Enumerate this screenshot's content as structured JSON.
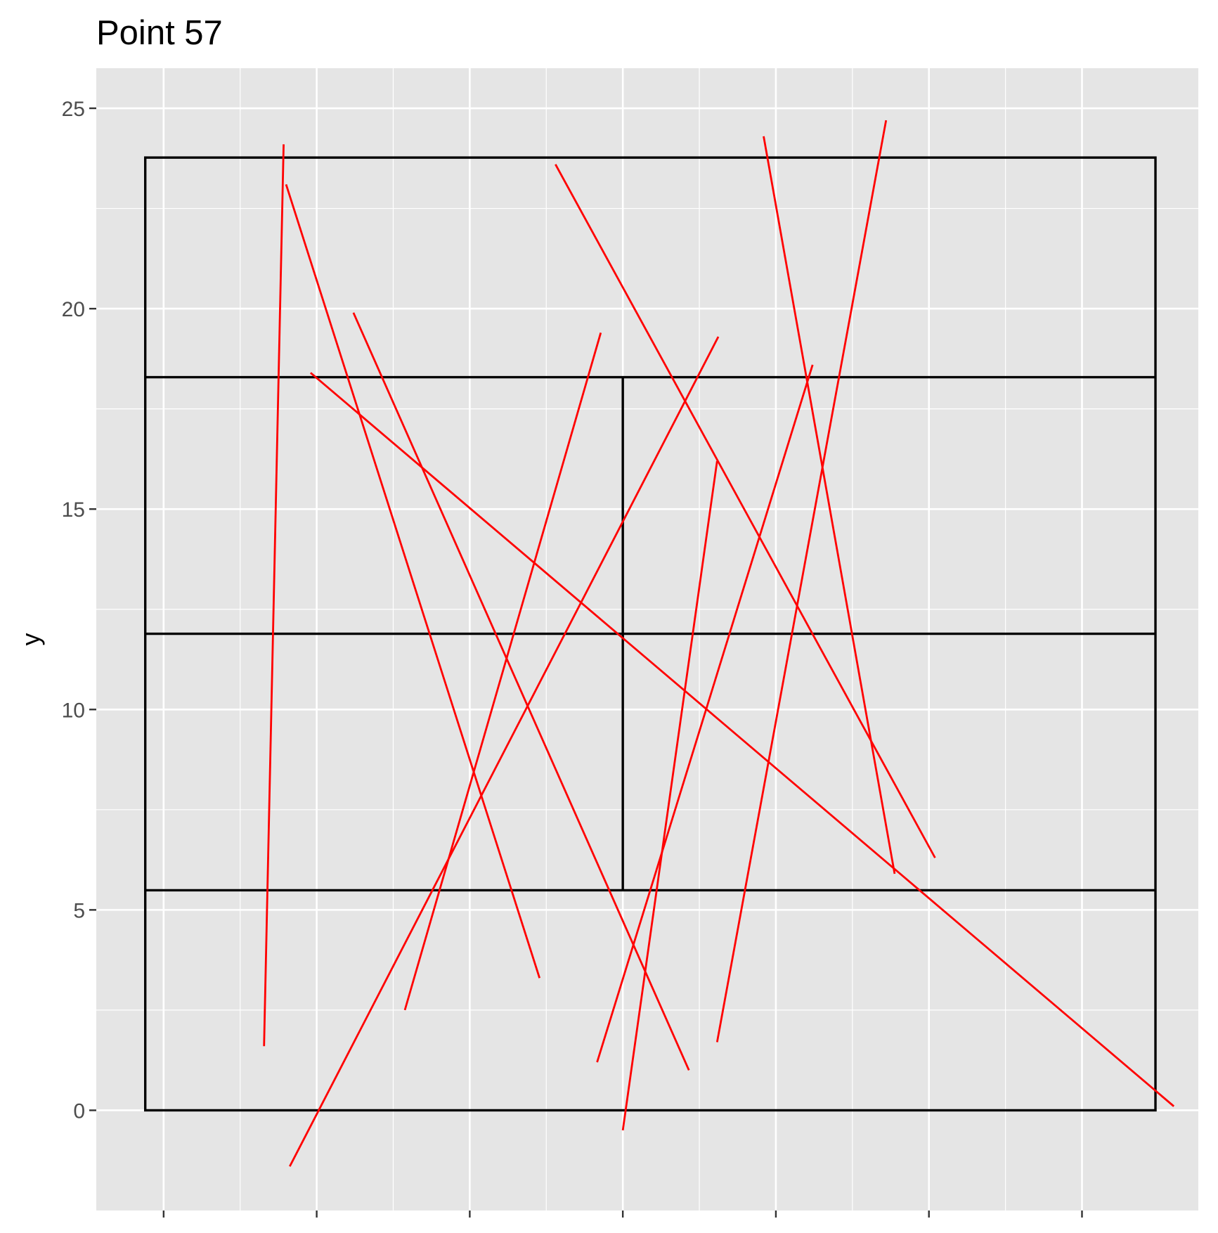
{
  "chart_data": {
    "type": "line",
    "title": "Point 57",
    "xlabel": "",
    "ylabel": "y",
    "xlim": [
      -4.3,
      4.7
    ],
    "ylim": [
      -2.5,
      26.0
    ],
    "y_ticks": [
      0,
      5,
      10,
      15,
      20,
      25
    ],
    "y_tick_labels": [
      "0",
      "5",
      "10",
      "15",
      "20",
      "25"
    ],
    "x_ticks": [
      -3.75,
      -2.5,
      -1.25,
      0,
      1.25,
      2.5,
      3.75
    ],
    "x_tick_labels": [],
    "grid": true,
    "colors": {
      "panel_background": "#e5e5e5",
      "grid_major": "#ffffff",
      "court": "#000000",
      "segments": "#ff0000"
    },
    "court": {
      "outline": {
        "x0": -3.9,
        "x1": 4.35,
        "y0": 0.0,
        "y1": 23.77
      },
      "horizontal_lines": [
        {
          "y": 18.29,
          "x0": -3.9,
          "x1": 4.35
        },
        {
          "y": 11.89,
          "x0": -3.9,
          "x1": 4.35
        },
        {
          "y": 5.49,
          "x0": -3.9,
          "x1": 4.35
        }
      ],
      "vertical_lines": [
        {
          "x": 0.0,
          "y0": 5.49,
          "y1": 18.29
        }
      ]
    },
    "series": [
      {
        "x": [
          -2.93,
          -2.77
        ],
        "y": [
          1.6,
          24.1
        ]
      },
      {
        "x": [
          -2.75,
          -0.68
        ],
        "y": [
          23.1,
          3.3
        ]
      },
      {
        "x": [
          -2.55,
          4.5
        ],
        "y": [
          18.4,
          0.1
        ]
      },
      {
        "x": [
          -2.2,
          0.54
        ],
        "y": [
          19.9,
          1.0
        ]
      },
      {
        "x": [
          -1.78,
          -0.18
        ],
        "y": [
          2.5,
          19.4
        ]
      },
      {
        "x": [
          -2.72,
          0.78
        ],
        "y": [
          -1.4,
          19.3
        ]
      },
      {
        "x": [
          -0.55,
          2.55
        ],
        "y": [
          23.6,
          6.3
        ]
      },
      {
        "x": [
          0.0,
          0.77
        ],
        "y": [
          -0.5,
          16.2
        ]
      },
      {
        "x": [
          -0.21,
          1.55
        ],
        "y": [
          1.2,
          18.6
        ]
      },
      {
        "x": [
          1.15,
          2.22
        ],
        "y": [
          24.3,
          5.9
        ]
      },
      {
        "x": [
          0.77,
          2.15
        ],
        "y": [
          1.7,
          24.7
        ]
      }
    ]
  }
}
